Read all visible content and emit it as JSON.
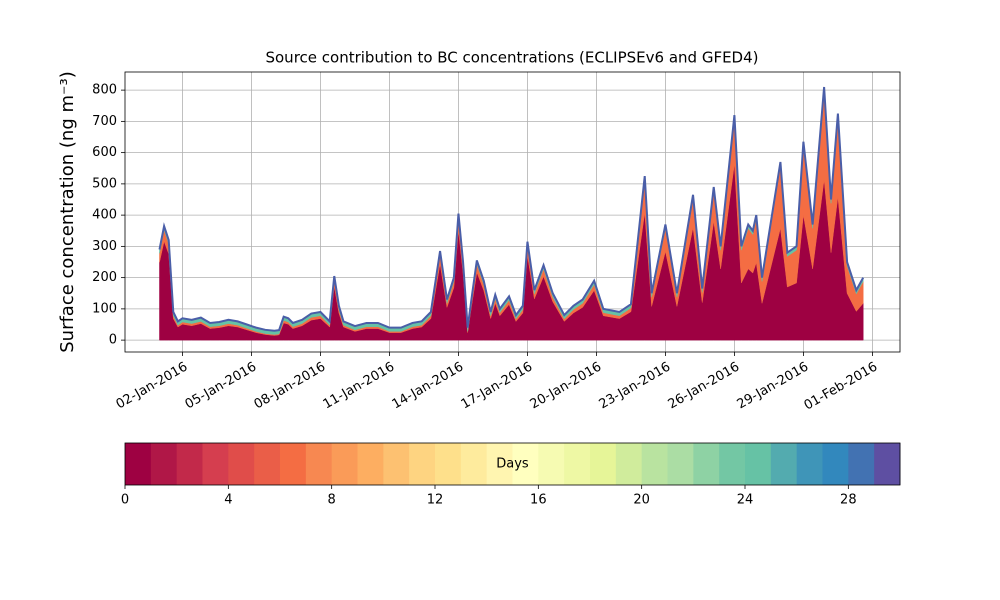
{
  "chart_data": {
    "type": "stacked-area",
    "title": "Source contribution to BC concentrations (ECLIPSEv6 and GFED4)",
    "y_label": "Surface concentration (ng m⁻³)",
    "grid": true,
    "x": [
      1.0,
      1.2,
      1.4,
      1.6,
      1.8,
      2.0,
      2.4,
      2.8,
      3.2,
      3.6,
      4.0,
      4.4,
      4.8,
      5.2,
      5.6,
      6.0,
      6.2,
      6.4,
      6.6,
      6.8,
      7.2,
      7.6,
      8.0,
      8.4,
      8.6,
      8.8,
      9.0,
      9.5,
      10.0,
      10.5,
      11.0,
      11.5,
      12.0,
      12.4,
      12.8,
      13.2,
      13.5,
      13.8,
      14.0,
      14.2,
      14.4,
      14.6,
      14.8,
      15.1,
      15.4,
      15.6,
      15.8,
      16.2,
      16.5,
      16.8,
      17.0,
      17.3,
      17.7,
      18.1,
      18.6,
      19.0,
      19.4,
      19.9,
      20.3,
      21.0,
      21.5,
      22.1,
      22.4,
      23.0,
      23.5,
      24.2,
      24.6,
      25.1,
      25.4,
      26.0,
      26.3,
      26.6,
      26.8,
      26.95,
      27.2,
      28.0,
      28.3,
      28.7,
      29.0,
      29.4,
      29.9,
      30.2,
      30.5,
      30.9,
      31.3,
      31.6
    ],
    "series": [
      {
        "color": "#9e0142",
        "values": [
          249,
          316,
          276,
          69,
          42,
          51,
          46,
          53,
          37,
          40,
          46,
          42,
          33,
          24,
          18,
          15,
          17,
          55,
          51,
          37,
          46,
          64,
          69,
          42,
          172,
          87,
          42,
          28,
          37,
          37,
          24,
          24,
          37,
          42,
          69,
          244,
          105,
          168,
          352,
          213,
          24,
          123,
          217,
          159,
          69,
          118,
          78,
          114,
          60,
          87,
          271,
          132,
          204,
          123,
          60,
          87,
          105,
          159,
          78,
          69,
          91,
          408,
          108,
          284,
          108,
          360,
          120,
          380,
          228,
          564,
          183,
          228,
          215,
          248,
          118,
          358,
          170,
          183,
          401,
          228,
          514,
          280,
          459,
          150,
          92,
          118
        ]
      },
      {
        "color": "#f46d43",
        "values": [
          29,
          37,
          32,
          9,
          6,
          7,
          7,
          7,
          6,
          6,
          7,
          6,
          5,
          4,
          3,
          3,
          3,
          8,
          7,
          6,
          7,
          9,
          9,
          6,
          21,
          11,
          6,
          5,
          6,
          6,
          4,
          4,
          6,
          6,
          9,
          29,
          13,
          20,
          41,
          25,
          4,
          15,
          26,
          19,
          9,
          15,
          10,
          14,
          8,
          11,
          32,
          16,
          24,
          15,
          8,
          11,
          13,
          19,
          10,
          9,
          12,
          105,
          30,
          74,
          30,
          93,
          33,
          98,
          60,
          144,
          105,
          130,
          123,
          140,
          70,
          200,
          98,
          105,
          222,
          130,
          284,
          158,
          254,
          88,
          56,
          70
        ]
      },
      {
        "color": "#66c2a5",
        "values": [
          12,
          12,
          12,
          12,
          12,
          12,
          12,
          12,
          12,
          12,
          12,
          12,
          12,
          12,
          12,
          12,
          12,
          12,
          12,
          12,
          12,
          12,
          12,
          12,
          12,
          12,
          12,
          12,
          12,
          12,
          12,
          12,
          12,
          12,
          12,
          12,
          12,
          12,
          12,
          12,
          12,
          12,
          12,
          12,
          12,
          12,
          12,
          12,
          12,
          12,
          12,
          12,
          12,
          12,
          12,
          12,
          12,
          12,
          12,
          12,
          12,
          12,
          12,
          12,
          12,
          12,
          12,
          12,
          12,
          12,
          12,
          12,
          12,
          12,
          12,
          12,
          12,
          12,
          12,
          12,
          12,
          12,
          12,
          12,
          12,
          12
        ]
      }
    ],
    "outline_color": "#4a5ea8",
    "xlim": [
      -0.5,
      33.2
    ],
    "xticks": [
      {
        "value": 2,
        "label": "02-Jan-2016"
      },
      {
        "value": 5,
        "label": "05-Jan-2016"
      },
      {
        "value": 8,
        "label": "08-Jan-2016"
      },
      {
        "value": 11,
        "label": "11-Jan-2016"
      },
      {
        "value": 14,
        "label": "14-Jan-2016"
      },
      {
        "value": 17,
        "label": "17-Jan-2016"
      },
      {
        "value": 20,
        "label": "20-Jan-2016"
      },
      {
        "value": 23,
        "label": "23-Jan-2016"
      },
      {
        "value": 26,
        "label": "26-Jan-2016"
      },
      {
        "value": 29,
        "label": "29-Jan-2016"
      },
      {
        "value": 32,
        "label": "01-Feb-2016"
      }
    ],
    "ylim": [
      -38,
      858
    ],
    "yticks": [
      0,
      100,
      200,
      300,
      400,
      500,
      600,
      700,
      800
    ],
    "colorbar": {
      "label": "Days",
      "lim": [
        0,
        30
      ],
      "ticks": [
        0,
        4,
        8,
        12,
        16,
        20,
        24,
        28
      ],
      "colors": [
        "#9e0142",
        "#b01747",
        "#c2294a",
        "#d53e4f",
        "#e04d4a",
        "#ea5e48",
        "#f46d43",
        "#f78851",
        "#fa9b58",
        "#fdae61",
        "#fdc171",
        "#fed481",
        "#fee08b",
        "#feeb9d",
        "#fff5b0",
        "#ffffbf",
        "#f6fbb2",
        "#eef8a4",
        "#e6f598",
        "#d0ec9c",
        "#b9e3a0",
        "#abdda4",
        "#8ed2a4",
        "#73c7a4",
        "#66c2a5",
        "#53abaf",
        "#3f95b8",
        "#3288bd",
        "#4272b2",
        "#5e4fa2"
      ]
    }
  }
}
